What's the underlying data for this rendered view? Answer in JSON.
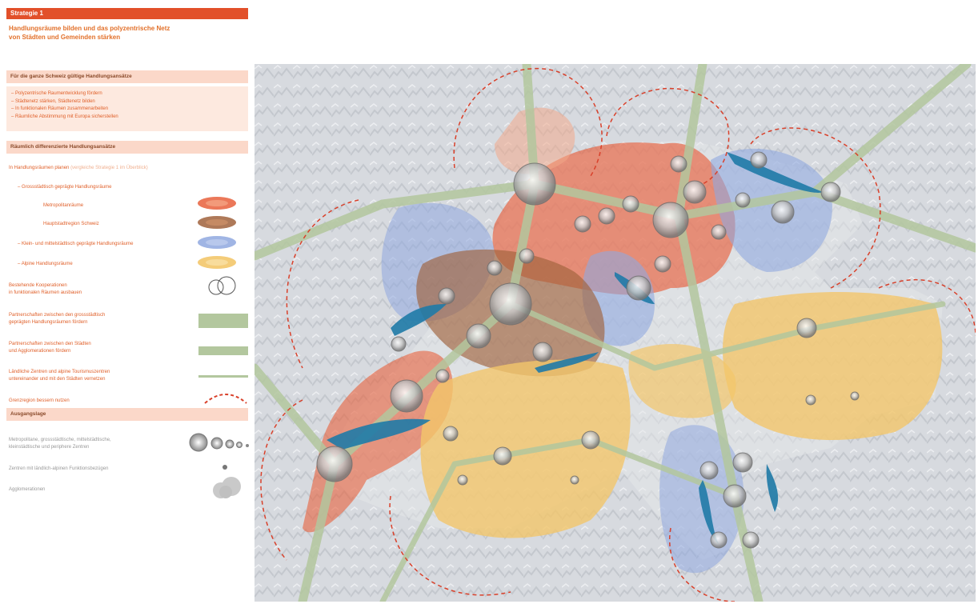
{
  "strategy": {
    "title": "Strategie 1",
    "subtitle_line1": "Handlungsräume bilden und das polyzentrische Netz",
    "subtitle_line2": "von Städten und Gemeinden stärken"
  },
  "general_section": {
    "heading": "Für die ganze Schweiz gültige Handlungsansätze",
    "items": [
      "Polyzentrische Raumentwicklung fördern",
      "Städtenetz stärken, Städtenetz bilden",
      "In funktionalen Räumen zusammenarbeiten",
      "Räumliche Abstimmung mit Europa sicherstellen"
    ]
  },
  "differentiated_section": {
    "heading": "Räumlich differenzierte Handlungsansätze",
    "intro_main": "In Handlungsräumen planen",
    "intro_pale": "(vergleiche Strategie 1 im Überblick)",
    "metro_heading": "Grossstädtisch geprägte Handlungsräume",
    "metro_items": [
      "Metropolitanräume",
      "Hauptstadtregion Schweiz"
    ],
    "medium_label": "Klein- und mittelstädtisch geprägte Handlungsräume",
    "alpine_label": "Alpine Handlungsräume",
    "cooperation_line1": "Bestehende Kooperationen",
    "cooperation_line2": "in funktionalen Räumen ausbauen",
    "partnership1_line1": "Partnerschaften zwischen den grossstädtisch",
    "partnership1_line2": "geprägten Handlungsräumen fördern",
    "partnership2_line1": "Partnerschaften zwischen den Städten",
    "partnership2_line2": "und Agglomerationen fördern",
    "rural_line1": "Ländliche Zentren und alpine Tourismuszentren",
    "rural_line2": "untereinander und mit den Städten vernetzen",
    "border_label": "Grenzregion bessern nutzen"
  },
  "base_section": {
    "heading": "Ausgangslage",
    "centers_line1": "Metropolitane, grossstädtische, mittelstädtische,",
    "centers_line2": "kleinstädtische und periphere Zentren",
    "rural_centers": "Zentren mit ländlich-alpinen Funktionsbezügen",
    "agglomerations": "Agglomerationen"
  },
  "colors": {
    "metro": "#e8603c",
    "capital": "#a0623c",
    "medium": "#8fa8df",
    "alpine": "#f3c66a",
    "partnership": "#b3c79e",
    "border_dash": "#d9412b",
    "lake": "#1f7aa7",
    "accent": "#e2502a"
  }
}
